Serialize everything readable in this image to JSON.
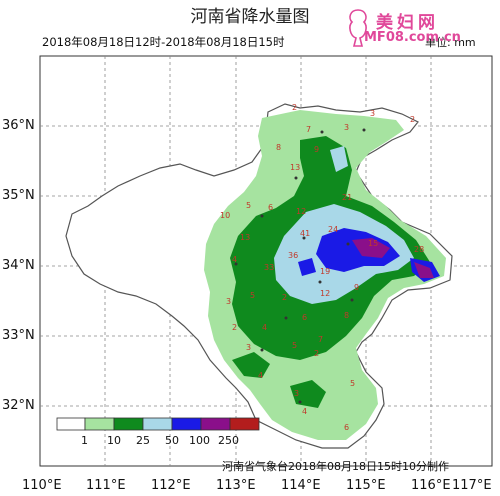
{
  "title": "河南省降水量图",
  "time_range": "2018年08月18日12时-2018年08月18日15时",
  "unit_label": "单位: mm",
  "watermark": {
    "site_name": "美妇网",
    "site_url": "MF08.com.cn"
  },
  "footer_credit": "河南省气象台2018年08月18日15时10分制作",
  "axes": {
    "lat_labels": [
      "36°N",
      "35°N",
      "34°N",
      "33°N",
      "32°N"
    ],
    "lon_labels": [
      "110°E",
      "111°E",
      "112°E",
      "113°E",
      "114°E",
      "115°E",
      "116°E",
      "117°E"
    ]
  },
  "legend": {
    "thresholds": [
      "1",
      "10",
      "25",
      "50",
      "100",
      "250"
    ],
    "colors": [
      "#ffffff",
      "#a6e3a0",
      "#0f8a1e",
      "#a9d8e8",
      "#1a1ae6",
      "#8a0f8a",
      "#b31d1d"
    ]
  },
  "station_values": [
    "2",
    "3",
    "2",
    "7",
    "3",
    "8",
    "9",
    "13",
    "5",
    "6",
    "12",
    "21",
    "41",
    "24",
    "36",
    "33",
    "19",
    "15",
    "28",
    "13",
    "10",
    "4",
    "5",
    "2",
    "3",
    "6",
    "8",
    "7",
    "4",
    "5",
    "12",
    "9",
    "4",
    "2",
    "3",
    "5",
    "6",
    "4",
    "3",
    "2"
  ]
}
